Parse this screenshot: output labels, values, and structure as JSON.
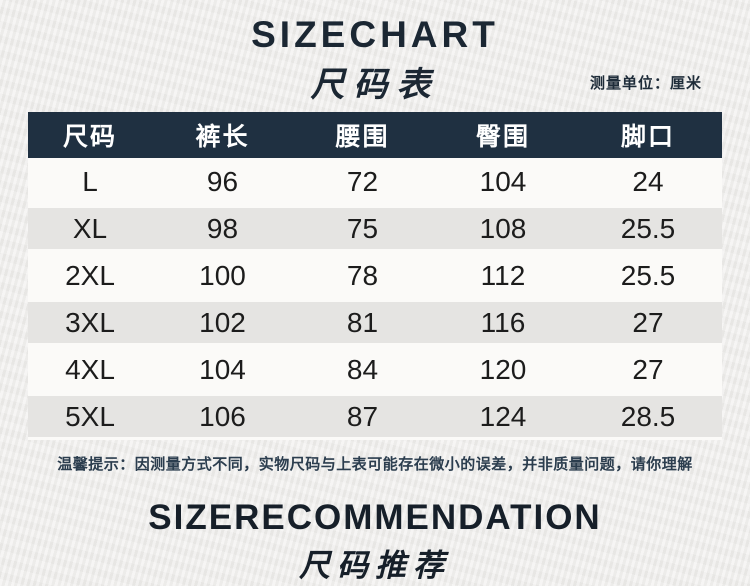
{
  "header": {
    "title_en": "SIZECHART",
    "title_cn": "尺码表",
    "unit_label": "测量单位：厘米"
  },
  "chart_data": {
    "type": "table",
    "title": "SIZECHART 尺码表",
    "unit": "厘米",
    "columns": [
      "尺码",
      "裤长",
      "腰围",
      "臀围",
      "脚口"
    ],
    "rows": [
      [
        "L",
        96,
        72,
        104,
        24
      ],
      [
        "XL",
        98,
        75,
        108,
        25.5
      ],
      [
        "2XL",
        100,
        78,
        112,
        25.5
      ],
      [
        "3XL",
        102,
        81,
        116,
        27
      ],
      [
        "4XL",
        104,
        84,
        120,
        27
      ],
      [
        "5XL",
        106,
        87,
        124,
        28.5
      ]
    ]
  },
  "note": "温馨提示：因测量方式不同，实物尺码与上表可能存在微小的误差，并非质量问题，请你理解",
  "footer": {
    "title_en": "SIZERECOMMENDATION",
    "title_cn": "尺码推荐"
  },
  "colors": {
    "accent_navy": "#1f3041",
    "page_bg": "#edecea",
    "row_alt": "#e5e4e2"
  }
}
